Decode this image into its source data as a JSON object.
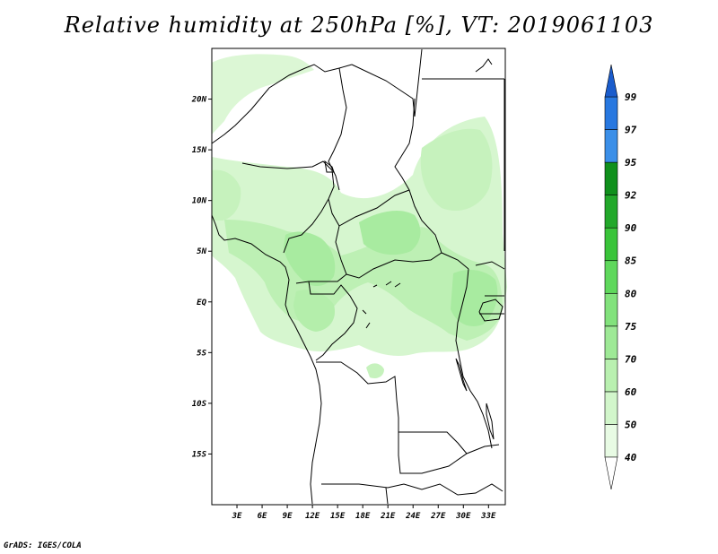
{
  "title": "Relative humidity at 250hPa [%], VT: 2019061103",
  "credit": "GrADS: IGES/COLA",
  "map": {
    "lat_labels": [
      {
        "lat": 20,
        "label": "20N"
      },
      {
        "lat": 15,
        "label": "15N"
      },
      {
        "lat": 10,
        "label": "10N"
      },
      {
        "lat": 5,
        "label": "5N"
      },
      {
        "lat": 0,
        "label": "EQ"
      },
      {
        "lat": -5,
        "label": "5S"
      },
      {
        "lat": -10,
        "label": "10S"
      },
      {
        "lat": -15,
        "label": "15S"
      }
    ],
    "lon_labels": [
      {
        "lon": 3,
        "label": "3E"
      },
      {
        "lon": 6,
        "label": "6E"
      },
      {
        "lon": 9,
        "label": "9E"
      },
      {
        "lon": 12,
        "label": "12E"
      },
      {
        "lon": 15,
        "label": "15E"
      },
      {
        "lon": 18,
        "label": "18E"
      },
      {
        "lon": 21,
        "label": "21E"
      },
      {
        "lon": 24,
        "label": "24E"
      },
      {
        "lon": 27,
        "label": "27E"
      },
      {
        "lon": 30,
        "label": "30E"
      },
      {
        "lon": 33,
        "label": "33E"
      }
    ],
    "extent": {
      "lon_min": 0,
      "lon_max": 35,
      "lat_min": -20,
      "lat_max": 25
    }
  },
  "colorbar": {
    "levels": [
      {
        "value": "40",
        "color": "#e8fbe4"
      },
      {
        "value": "50",
        "color": "#d2f6cb"
      },
      {
        "value": "60",
        "color": "#b9f0b0"
      },
      {
        "value": "70",
        "color": "#9ee996"
      },
      {
        "value": "75",
        "color": "#82e27c"
      },
      {
        "value": "80",
        "color": "#5fd85c"
      },
      {
        "value": "85",
        "color": "#3ac43a"
      },
      {
        "value": "90",
        "color": "#22a82a"
      },
      {
        "value": "92",
        "color": "#10901c"
      },
      {
        "value": "95",
        "color": "#3b8fe8"
      },
      {
        "value": "97",
        "color": "#2878e0"
      },
      {
        "value": "99",
        "color": "#1a5ccc"
      }
    ]
  },
  "humidity_colors": {
    "light": "#d8f7d0",
    "medium": "#b4eeab"
  }
}
